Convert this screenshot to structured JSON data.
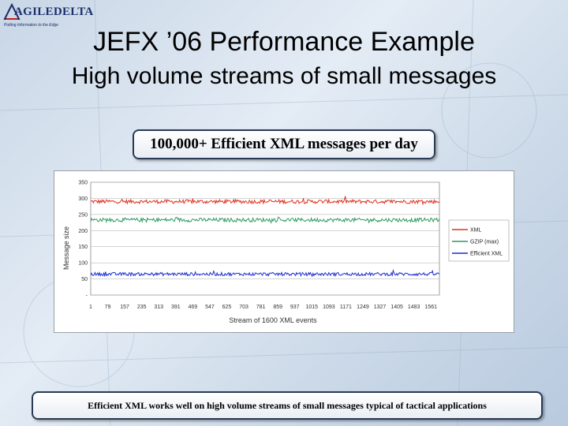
{
  "logo": {
    "wordmark": "AGILEDELTA",
    "tagline": "Putting Information to the Edge"
  },
  "title": "JEFX ’06 Performance Example",
  "subtitle": "High volume streams of small messages",
  "callout": "100,000+ Efficient XML messages per day",
  "footer": "Efficient XML works well on high volume streams of small messages typical of tactical applications",
  "colors": {
    "xml": "#e03020",
    "gzip": "#2e9a5e",
    "efficient_xml": "#1a2fd0",
    "border": "#2a3a55"
  },
  "chart_data": {
    "type": "line",
    "xlabel": "Stream of 1600 XML events",
    "ylabel": "Message size",
    "ylim": [
      0,
      350
    ],
    "xlim": [
      1,
      1600
    ],
    "y_ticks": [
      "350",
      "300",
      "250",
      "200",
      "150",
      "100",
      "50",
      "-"
    ],
    "y_tick_values": [
      350,
      300,
      250,
      200,
      150,
      100,
      50,
      0
    ],
    "x_ticks": [
      "1",
      "79",
      "157",
      "235",
      "313",
      "391",
      "469",
      "547",
      "625",
      "703",
      "781",
      "859",
      "937",
      "1015",
      "1093",
      "1171",
      "1249",
      "1327",
      "1405",
      "1483",
      "1561"
    ],
    "grid": true,
    "legend_position": "right",
    "series": [
      {
        "name": "XML",
        "color_key": "xml",
        "mean": 290,
        "noise": 6
      },
      {
        "name": "GZIP (max)",
        "color_key": "gzip",
        "mean": 233,
        "noise": 6
      },
      {
        "name": "Efficient XML",
        "color_key": "efficient_xml",
        "mean": 65,
        "noise": 5
      }
    ]
  }
}
